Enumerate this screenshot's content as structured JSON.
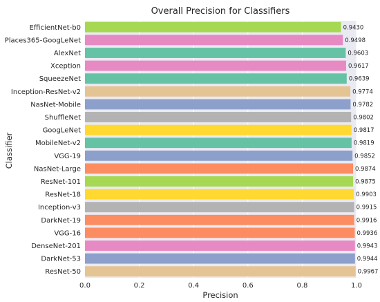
{
  "chart_data": {
    "type": "bar",
    "orientation": "horizontal",
    "title": "Overall Precision for Classifiers",
    "xlabel": "Precision",
    "ylabel": "Classifier",
    "xlim": [
      0.0,
      1.0
    ],
    "xticks": [
      "0.0",
      "0.2",
      "0.4",
      "0.6",
      "0.8",
      "1.0"
    ],
    "grid": true,
    "categories": [
      "EfficientNet-b0",
      "Places365-GoogLeNet",
      "AlexNet",
      "Xception",
      "SqueezeNet",
      "Inception-ResNet-v2",
      "NasNet-Mobile",
      "ShuffleNet",
      "GoogLeNet",
      "MobileNet-v2",
      "VGG-19",
      "NasNet-Large",
      "ResNet-101",
      "ResNet-18",
      "Inception-v3",
      "DarkNet-19",
      "VGG-16",
      "DenseNet-201",
      "DarkNet-53",
      "ResNet-50"
    ],
    "values": [
      0.943,
      0.9498,
      0.9603,
      0.9617,
      0.9639,
      0.9774,
      0.9782,
      0.9802,
      0.9817,
      0.9819,
      0.9852,
      0.9874,
      0.9875,
      0.9903,
      0.9915,
      0.9916,
      0.9936,
      0.9943,
      0.9944,
      0.9967
    ],
    "value_labels": [
      "0.9430",
      "0.9498",
      "0.9603",
      "0.9617",
      "0.9639",
      "0.9774",
      "0.9782",
      "0.9802",
      "0.9817",
      "0.9819",
      "0.9852",
      "0.9874",
      "0.9875",
      "0.9903",
      "0.9915",
      "0.9916",
      "0.9936",
      "0.9943",
      "0.9944",
      "0.9967"
    ],
    "colors": [
      "#a6d854",
      "#e78ac3",
      "#66c2a5",
      "#e78ac3",
      "#66c2a5",
      "#e5c494",
      "#8da0cb",
      "#b3b3b3",
      "#ffd92f",
      "#66c2a5",
      "#8da0cb",
      "#fc8d62",
      "#a6d854",
      "#ffd92f",
      "#b3b3b3",
      "#fc8d62",
      "#fc8d62",
      "#e78ac3",
      "#8da0cb",
      "#e5c494"
    ],
    "background_color": "#eaeaf2"
  }
}
